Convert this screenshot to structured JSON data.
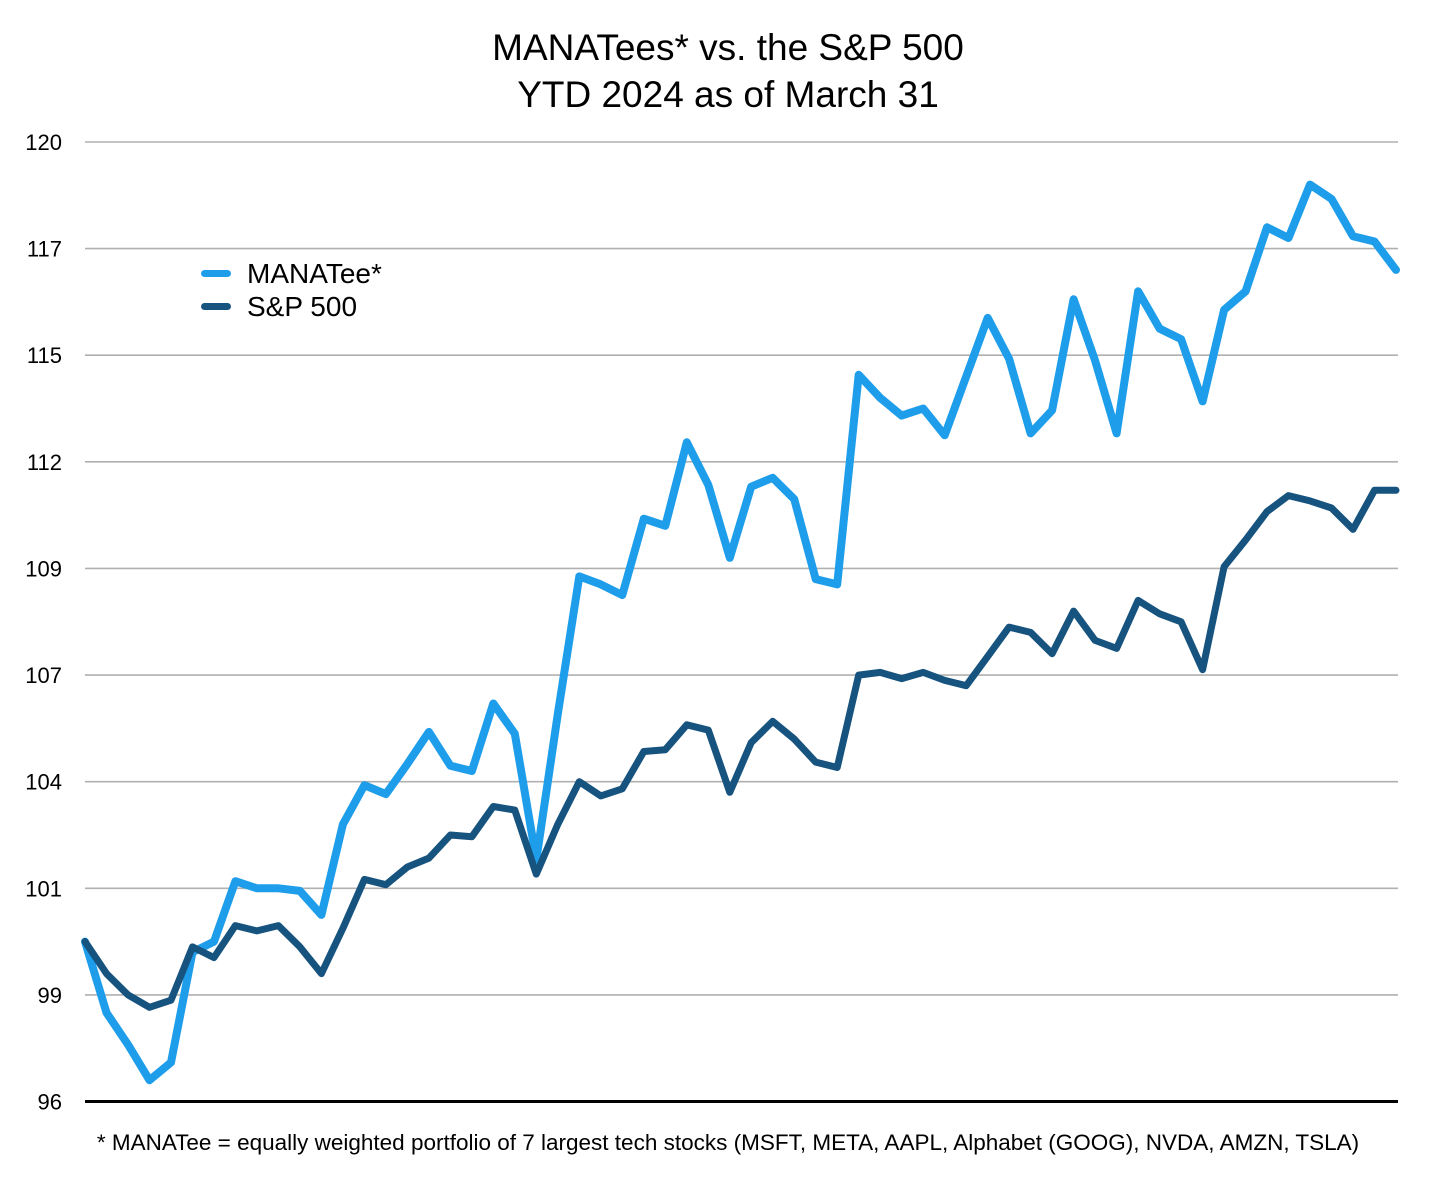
{
  "title": {
    "line1": "MANATees* vs. the S&P 500",
    "line2": "YTD 2024 as of March 31"
  },
  "legend": {
    "items": [
      {
        "label": "MANATee*",
        "color": "#1e9deb"
      },
      {
        "label": "S&P 500",
        "color": "#17537f"
      }
    ]
  },
  "footnote": "* MANATee = equally weighted portfolio of 7 largest tech stocks (MSFT, META, AAPL, Alphabet (GOOG), NVDA, AMZN, TSLA)",
  "chart_data": {
    "type": "line",
    "title": "MANATees* vs. the S&P 500 — YTD 2024 as of March 31",
    "xlabel": "",
    "ylabel": "",
    "x_axis": {
      "visible_tick_labels": false,
      "points": 62,
      "description": "daily values, Jan 1 to Mar 31 2024, indexed to 100 at start"
    },
    "y_axis": {
      "tick_labels": [
        96,
        99,
        101,
        104,
        107,
        109,
        112,
        115,
        117,
        120
      ],
      "evenly_spaced_gridlines": true,
      "grid": true,
      "gridline_color": "#b0b0b0",
      "baseline_color": "#000000"
    },
    "legend_position": "upper-left-inside",
    "series": [
      {
        "name": "MANATee*",
        "color": "#1e9deb",
        "values": [
          100,
          98.5,
          97.6,
          96.6,
          97.1,
          99.8,
          100.0,
          101.2,
          101.0,
          101.0,
          100.95,
          100.5,
          102.8,
          103.9,
          103.65,
          104.5,
          105.4,
          104.45,
          104.3,
          106.2,
          105.35,
          101.8,
          105.9,
          108.85,
          108.7,
          108.5,
          110.4,
          110.2,
          112.55,
          111.35,
          109.3,
          111.3,
          111.55,
          110.95,
          108.8,
          108.7,
          114.45,
          113.8,
          113.3,
          113.5,
          112.75,
          114.4,
          115.7,
          114.9,
          112.8,
          113.45,
          116.05,
          114.85,
          112.8,
          116.2,
          115.5,
          115.3,
          113.7,
          115.85,
          116.2,
          117.6,
          117.3,
          118.8,
          118.4,
          117.35,
          117.2,
          116.6
        ]
      },
      {
        "name": "S&P 500",
        "color": "#17537f",
        "values": [
          100,
          99.4,
          99.0,
          98.65,
          98.85,
          99.9,
          99.7,
          100.3,
          100.2,
          100.3,
          99.9,
          99.4,
          100.25,
          101.25,
          101.1,
          101.6,
          101.85,
          102.5,
          102.45,
          103.3,
          103.2,
          101.4,
          102.8,
          104.0,
          103.6,
          103.8,
          104.85,
          104.9,
          105.6,
          105.45,
          103.7,
          105.1,
          105.7,
          105.2,
          104.55,
          104.4,
          107.0,
          107.05,
          106.9,
          107.05,
          106.85,
          106.7,
          107.35,
          107.9,
          107.8,
          107.4,
          108.2,
          107.65,
          107.5,
          108.4,
          108.15,
          108.0,
          107.1,
          109.05,
          109.8,
          110.6,
          111.05,
          110.9,
          110.7,
          110.1,
          111.2,
          111.2
        ]
      }
    ]
  }
}
